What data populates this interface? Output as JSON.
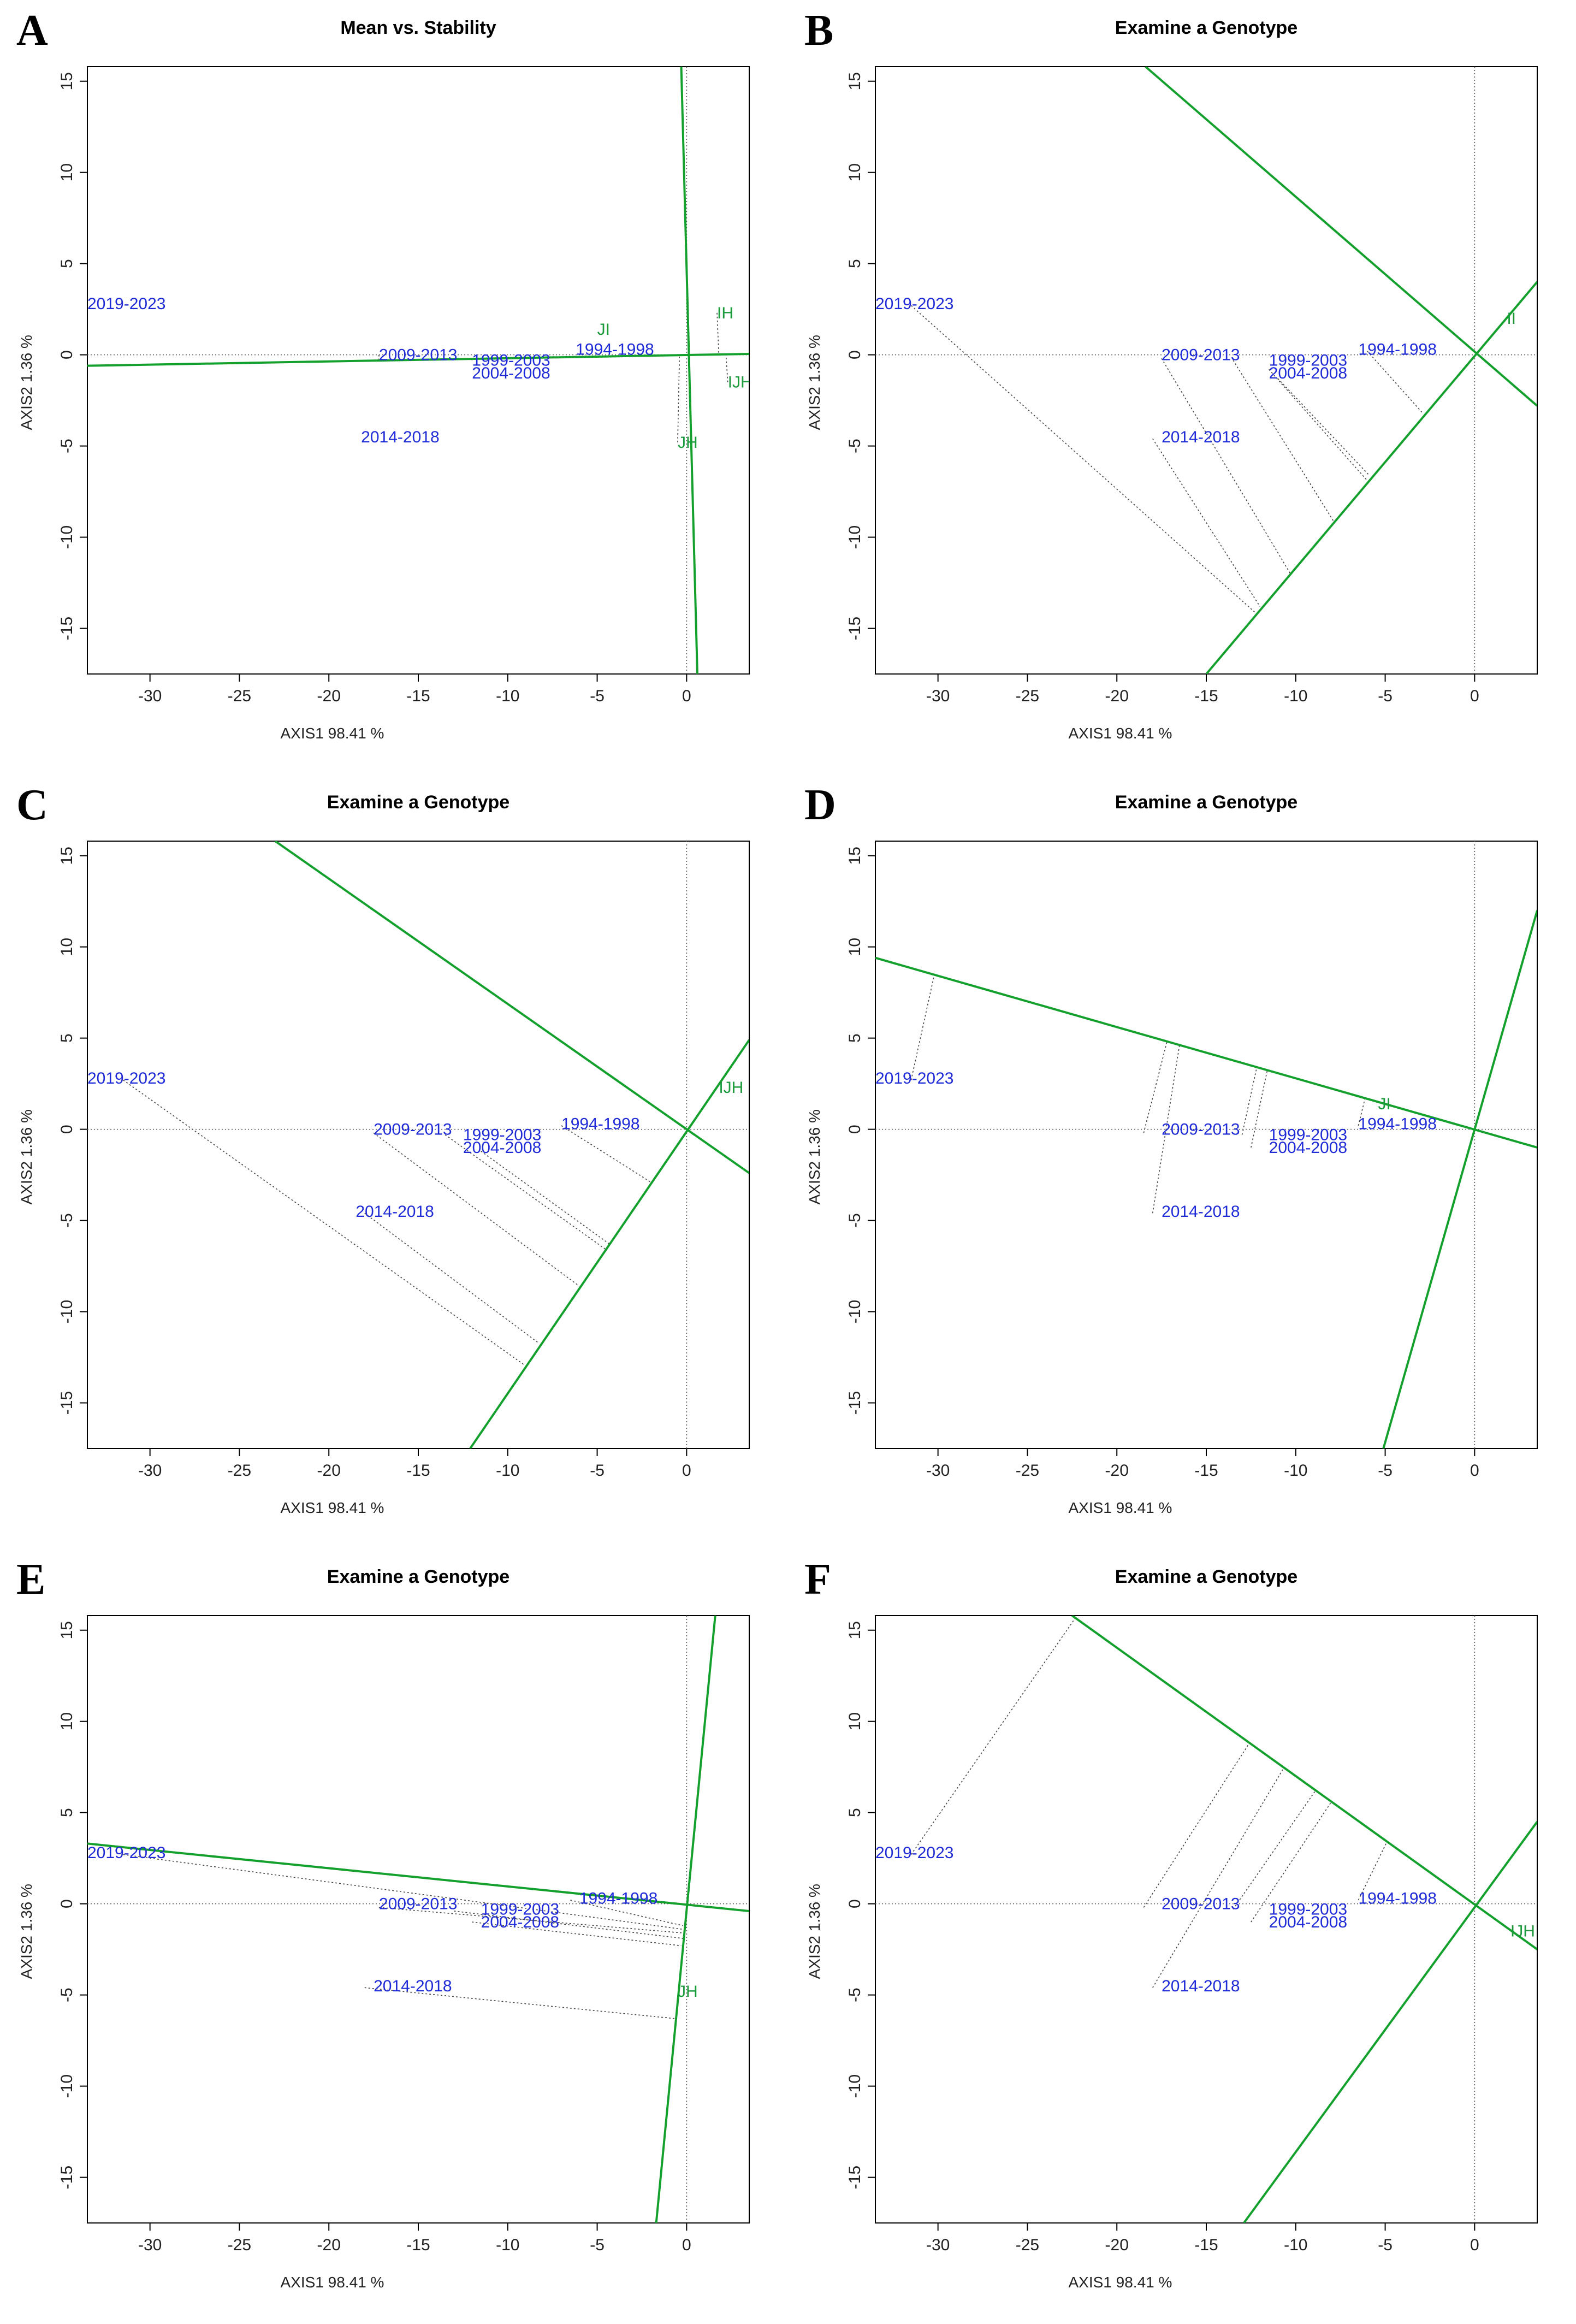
{
  "figure": {
    "axis_x_label": "AXIS1 98.41 %",
    "axis_y_label": "AXIS2 1.36 %",
    "xlim": [
      -33.5,
      3.5
    ],
    "ylim": [
      -17.5,
      15.8
    ],
    "x_ticks": [
      -30,
      -25,
      -20,
      -15,
      -10,
      -5,
      0
    ],
    "y_ticks": [
      15,
      10,
      5,
      0,
      -5,
      -10,
      -15
    ],
    "colors": {
      "environment": "#1f2bd6",
      "genotype": "#1a9a3a",
      "line": "#14a02c",
      "projection": "#444444"
    }
  },
  "chart_data": [
    {
      "panel": "A",
      "type": "scatter",
      "title": "Mean vs. Stability",
      "xlabel": "AXIS1 98.41 %",
      "ylabel": "AXIS2 1.36 %",
      "xlim": [
        -33.5,
        3.5
      ],
      "ylim": [
        -17.5,
        15.8
      ],
      "environments": [
        {
          "label": "2019-2023",
          "x": -33.5,
          "y": 2.8
        },
        {
          "label": "2009-2013",
          "x": -17.2,
          "y": 0.0
        },
        {
          "label": "1999-2003",
          "x": -12.0,
          "y": -0.3
        },
        {
          "label": "2004-2008",
          "x": -12.0,
          "y": -1.0
        },
        {
          "label": "1994-1998",
          "x": -6.2,
          "y": 0.3
        },
        {
          "label": "2014-2018",
          "x": -18.2,
          "y": -4.5
        }
      ],
      "genotypes": [
        {
          "label": "JI",
          "x": -5.0,
          "y": 1.4
        },
        {
          "label": "IH",
          "x": 1.7,
          "y": 2.3
        },
        {
          "label": "IJH",
          "x": 2.3,
          "y": -1.5
        },
        {
          "label": "JH",
          "x": -0.5,
          "y": -4.8
        }
      ],
      "lines": [
        {
          "from": [
            -33.5,
            -0.6
          ],
          "to": [
            3.5,
            0.05
          ]
        },
        {
          "from": [
            -0.3,
            15.8
          ],
          "to": [
            0.6,
            -17.5
          ]
        }
      ],
      "projections": [
        {
          "from": [
            -17.2,
            0.0
          ],
          "to": [
            -17.2,
            -0.3
          ]
        },
        {
          "from": [
            -12.0,
            -0.3
          ],
          "to": [
            -12.0,
            -0.2
          ]
        },
        {
          "from": [
            1.7,
            2.3
          ],
          "to": [
            1.8,
            0.0
          ]
        },
        {
          "from": [
            2.3,
            -1.5
          ],
          "to": [
            2.2,
            0.0
          ]
        },
        {
          "from": [
            -0.5,
            -4.8
          ],
          "to": [
            -0.4,
            0.0
          ]
        }
      ]
    },
    {
      "panel": "B",
      "type": "scatter",
      "title": "Examine a Genotype",
      "xlabel": "AXIS1 98.41 %",
      "ylabel": "AXIS2 1.36 %",
      "xlim": [
        -33.5,
        3.5
      ],
      "ylim": [
        -17.5,
        15.8
      ],
      "environments": [
        {
          "label": "2019-2023",
          "x": -33.5,
          "y": 2.8
        },
        {
          "label": "2009-2013",
          "x": -17.5,
          "y": 0.0
        },
        {
          "label": "1999-2003",
          "x": -11.5,
          "y": -0.3
        },
        {
          "label": "2004-2008",
          "x": -11.5,
          "y": -1.0
        },
        {
          "label": "1994-1998",
          "x": -6.5,
          "y": 0.3
        },
        {
          "label": "2014-2018",
          "x": -17.5,
          "y": -4.5
        }
      ],
      "genotypes": [
        {
          "label": "II",
          "x": 1.8,
          "y": 2.0
        }
      ],
      "lines": [
        {
          "from": [
            -18.4,
            15.8
          ],
          "to": [
            3.5,
            -2.8
          ]
        },
        {
          "from": [
            -15.0,
            -17.5
          ],
          "to": [
            3.5,
            4.0
          ]
        }
      ],
      "projections": [
        {
          "from": [
            -31.5,
            2.7
          ],
          "to": [
            -12.3,
            -14.1
          ]
        },
        {
          "from": [
            -17.5,
            -0.2
          ],
          "to": [
            -10.3,
            -12.0
          ]
        },
        {
          "from": [
            -13.5,
            -0.3
          ],
          "to": [
            -7.9,
            -9.1
          ]
        },
        {
          "from": [
            -11.5,
            -0.8
          ],
          "to": [
            -6.0,
            -6.9
          ]
        },
        {
          "from": [
            -11.0,
            -1.3
          ],
          "to": [
            -5.9,
            -6.6
          ]
        },
        {
          "from": [
            -6.0,
            0.2
          ],
          "to": [
            -2.9,
            -3.2
          ]
        },
        {
          "from": [
            -18.0,
            -4.6
          ],
          "to": [
            -12.0,
            -13.8
          ]
        }
      ]
    },
    {
      "panel": "C",
      "type": "scatter",
      "title": "Examine a Genotype",
      "xlabel": "AXIS1 98.41 %",
      "ylabel": "AXIS2 1.36 %",
      "xlim": [
        -33.5,
        3.5
      ],
      "ylim": [
        -17.5,
        15.8
      ],
      "environments": [
        {
          "label": "2019-2023",
          "x": -33.5,
          "y": 2.8
        },
        {
          "label": "2009-2013",
          "x": -17.5,
          "y": 0.0
        },
        {
          "label": "1999-2003",
          "x": -12.5,
          "y": -0.3
        },
        {
          "label": "2004-2008",
          "x": -12.5,
          "y": -1.0
        },
        {
          "label": "1994-1998",
          "x": -7.0,
          "y": 0.3
        },
        {
          "label": "2014-2018",
          "x": -18.5,
          "y": -4.5
        }
      ],
      "genotypes": [
        {
          "label": "IJH",
          "x": 1.8,
          "y": 2.3
        }
      ],
      "lines": [
        {
          "from": [
            -23.0,
            15.8
          ],
          "to": [
            3.5,
            -2.4
          ]
        },
        {
          "from": [
            -12.1,
            -17.5
          ],
          "to": [
            3.5,
            4.9
          ]
        }
      ],
      "projections": [
        {
          "from": [
            -31.5,
            2.7
          ],
          "to": [
            -9.1,
            -12.9
          ]
        },
        {
          "from": [
            -18.0,
            -4.6
          ],
          "to": [
            -8.3,
            -11.7
          ]
        },
        {
          "from": [
            -17.5,
            -0.2
          ],
          "to": [
            -6.0,
            -8.6
          ]
        },
        {
          "from": [
            -13.5,
            -0.3
          ],
          "to": [
            -4.5,
            -6.6
          ]
        },
        {
          "from": [
            -11.5,
            -1.2
          ],
          "to": [
            -4.3,
            -6.3
          ]
        },
        {
          "from": [
            -7.0,
            0.2
          ],
          "to": [
            -2.0,
            -2.9
          ]
        }
      ]
    },
    {
      "panel": "D",
      "type": "scatter",
      "title": "Examine a Genotype",
      "xlabel": "AXIS1 98.41 %",
      "ylabel": "AXIS2 1.36 %",
      "xlim": [
        -33.5,
        3.5
      ],
      "ylim": [
        -17.5,
        15.8
      ],
      "environments": [
        {
          "label": "2019-2023",
          "x": -33.5,
          "y": 2.8
        },
        {
          "label": "2009-2013",
          "x": -17.5,
          "y": 0.0
        },
        {
          "label": "1999-2003",
          "x": -11.5,
          "y": -0.3
        },
        {
          "label": "2004-2008",
          "x": -11.5,
          "y": -1.0
        },
        {
          "label": "1994-1998",
          "x": -6.5,
          "y": 0.3
        },
        {
          "label": "2014-2018",
          "x": -17.5,
          "y": -4.5
        }
      ],
      "genotypes": [
        {
          "label": "JI",
          "x": -5.4,
          "y": 1.4
        }
      ],
      "lines": [
        {
          "from": [
            -33.5,
            9.4
          ],
          "to": [
            3.5,
            -1.0
          ]
        },
        {
          "from": [
            -5.1,
            -17.5
          ],
          "to": [
            3.5,
            12.0
          ]
        }
      ],
      "projections": [
        {
          "from": [
            -31.5,
            2.7
          ],
          "to": [
            -30.2,
            8.5
          ]
        },
        {
          "from": [
            -18.5,
            -0.2
          ],
          "to": [
            -17.2,
            4.8
          ]
        },
        {
          "from": [
            -18.0,
            -4.6
          ],
          "to": [
            -16.5,
            4.6
          ]
        },
        {
          "from": [
            -13.0,
            -0.3
          ],
          "to": [
            -12.2,
            3.3
          ]
        },
        {
          "from": [
            -12.5,
            -1.0
          ],
          "to": [
            -11.6,
            3.2
          ]
        },
        {
          "from": [
            -6.5,
            0.2
          ],
          "to": [
            -6.1,
            1.8
          ]
        }
      ]
    },
    {
      "panel": "E",
      "type": "scatter",
      "title": "Examine a Genotype",
      "xlabel": "AXIS1 98.41 %",
      "ylabel": "AXIS2 1.36 %",
      "xlim": [
        -33.5,
        3.5
      ],
      "ylim": [
        -17.5,
        15.8
      ],
      "environments": [
        {
          "label": "2019-2023",
          "x": -33.5,
          "y": 2.8
        },
        {
          "label": "2009-2013",
          "x": -17.2,
          "y": 0.0
        },
        {
          "label": "1999-2003",
          "x": -11.5,
          "y": -0.3
        },
        {
          "label": "2004-2008",
          "x": -11.5,
          "y": -1.0
        },
        {
          "label": "1994-1998",
          "x": -6.0,
          "y": 0.3
        },
        {
          "label": "2014-2018",
          "x": -17.5,
          "y": -4.5
        }
      ],
      "genotypes": [
        {
          "label": "JH",
          "x": -0.5,
          "y": -4.8
        }
      ],
      "lines": [
        {
          "from": [
            -33.5,
            3.3
          ],
          "to": [
            3.5,
            -0.4
          ]
        },
        {
          "from": [
            -1.7,
            -17.5
          ],
          "to": [
            1.6,
            15.8
          ]
        }
      ],
      "projections": [
        {
          "from": [
            -31.5,
            2.7
          ],
          "to": [
            -0.2,
            -1.4
          ]
        },
        {
          "from": [
            -17.2,
            -0.2
          ],
          "to": [
            -0.2,
            -1.6
          ]
        },
        {
          "from": [
            -13.0,
            -0.4
          ],
          "to": [
            -0.2,
            -1.9
          ]
        },
        {
          "from": [
            -12.0,
            -1.0
          ],
          "to": [
            -0.3,
            -2.3
          ]
        },
        {
          "from": [
            -6.5,
            0.2
          ],
          "to": [
            -0.2,
            -1.2
          ]
        },
        {
          "from": [
            -18.0,
            -4.6
          ],
          "to": [
            -0.6,
            -6.3
          ]
        }
      ]
    },
    {
      "panel": "F",
      "type": "scatter",
      "title": "Examine a Genotype",
      "xlabel": "AXIS1 98.41 %",
      "ylabel": "AXIS2 1.36 %",
      "xlim": [
        -33.5,
        3.5
      ],
      "ylim": [
        -17.5,
        15.8
      ],
      "environments": [
        {
          "label": "2019-2023",
          "x": -33.5,
          "y": 2.8
        },
        {
          "label": "2009-2013",
          "x": -17.5,
          "y": 0.0
        },
        {
          "label": "1999-2003",
          "x": -11.5,
          "y": -0.3
        },
        {
          "label": "2004-2008",
          "x": -11.5,
          "y": -1.0
        },
        {
          "label": "1994-1998",
          "x": -6.5,
          "y": 0.3
        },
        {
          "label": "2014-2018",
          "x": -17.5,
          "y": -4.5
        }
      ],
      "genotypes": [
        {
          "label": "IJH",
          "x": 2.0,
          "y": -1.5
        }
      ],
      "lines": [
        {
          "from": [
            -22.5,
            15.8
          ],
          "to": [
            3.5,
            -2.5
          ]
        },
        {
          "from": [
            -12.9,
            -17.5
          ],
          "to": [
            3.5,
            4.5
          ]
        }
      ],
      "projections": [
        {
          "from": [
            -31.5,
            2.7
          ],
          "to": [
            -22.3,
            15.7
          ]
        },
        {
          "from": [
            -18.5,
            -0.2
          ],
          "to": [
            -12.6,
            8.8
          ]
        },
        {
          "from": [
            -18.0,
            -4.6
          ],
          "to": [
            -10.7,
            7.4
          ]
        },
        {
          "from": [
            -13.5,
            -0.3
          ],
          "to": [
            -8.9,
            6.2
          ]
        },
        {
          "from": [
            -12.5,
            -1.0
          ],
          "to": [
            -8.0,
            5.6
          ]
        },
        {
          "from": [
            -6.5,
            0.2
          ],
          "to": [
            -4.9,
            3.4
          ]
        }
      ]
    }
  ]
}
